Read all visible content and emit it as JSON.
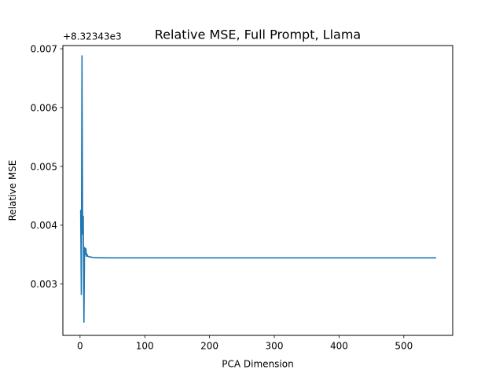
{
  "chart_data": {
    "type": "line",
    "title": "Relative MSE, Full Prompt, Llama",
    "xlabel": "PCA Dimension",
    "ylabel": "Relative MSE",
    "offset_label": "+8.32343e3",
    "xlim": [
      -26.5,
      575.5
    ],
    "ylim": [
      0.002125,
      0.007055
    ],
    "x_ticks": [
      0,
      100,
      200,
      300,
      400,
      500
    ],
    "x_tick_labels": [
      "0",
      "100",
      "200",
      "300",
      "400",
      "500"
    ],
    "y_ticks": [
      0.003,
      0.004,
      0.005,
      0.006,
      0.007
    ],
    "y_tick_labels": [
      "0.003",
      "0.004",
      "0.005",
      "0.006",
      "0.007"
    ],
    "grid": false,
    "series": [
      {
        "color": "#1f77b4",
        "points": [
          [
            1,
            0.00425
          ],
          [
            2,
            0.00282
          ],
          [
            3,
            0.00688
          ],
          [
            4,
            0.00385
          ],
          [
            5,
            0.00415
          ],
          [
            6,
            0.00235
          ],
          [
            7,
            0.00362
          ],
          [
            8,
            0.0035
          ],
          [
            9,
            0.0036
          ],
          [
            10,
            0.00347
          ],
          [
            11,
            0.0035
          ],
          [
            12,
            0.00347
          ],
          [
            15,
            0.00346
          ],
          [
            20,
            0.00345
          ],
          [
            30,
            0.003445
          ],
          [
            50,
            0.003443
          ],
          [
            100,
            0.003443
          ],
          [
            200,
            0.003443
          ],
          [
            300,
            0.003443
          ],
          [
            400,
            0.003443
          ],
          [
            500,
            0.003443
          ],
          [
            549,
            0.003443
          ]
        ]
      }
    ]
  }
}
